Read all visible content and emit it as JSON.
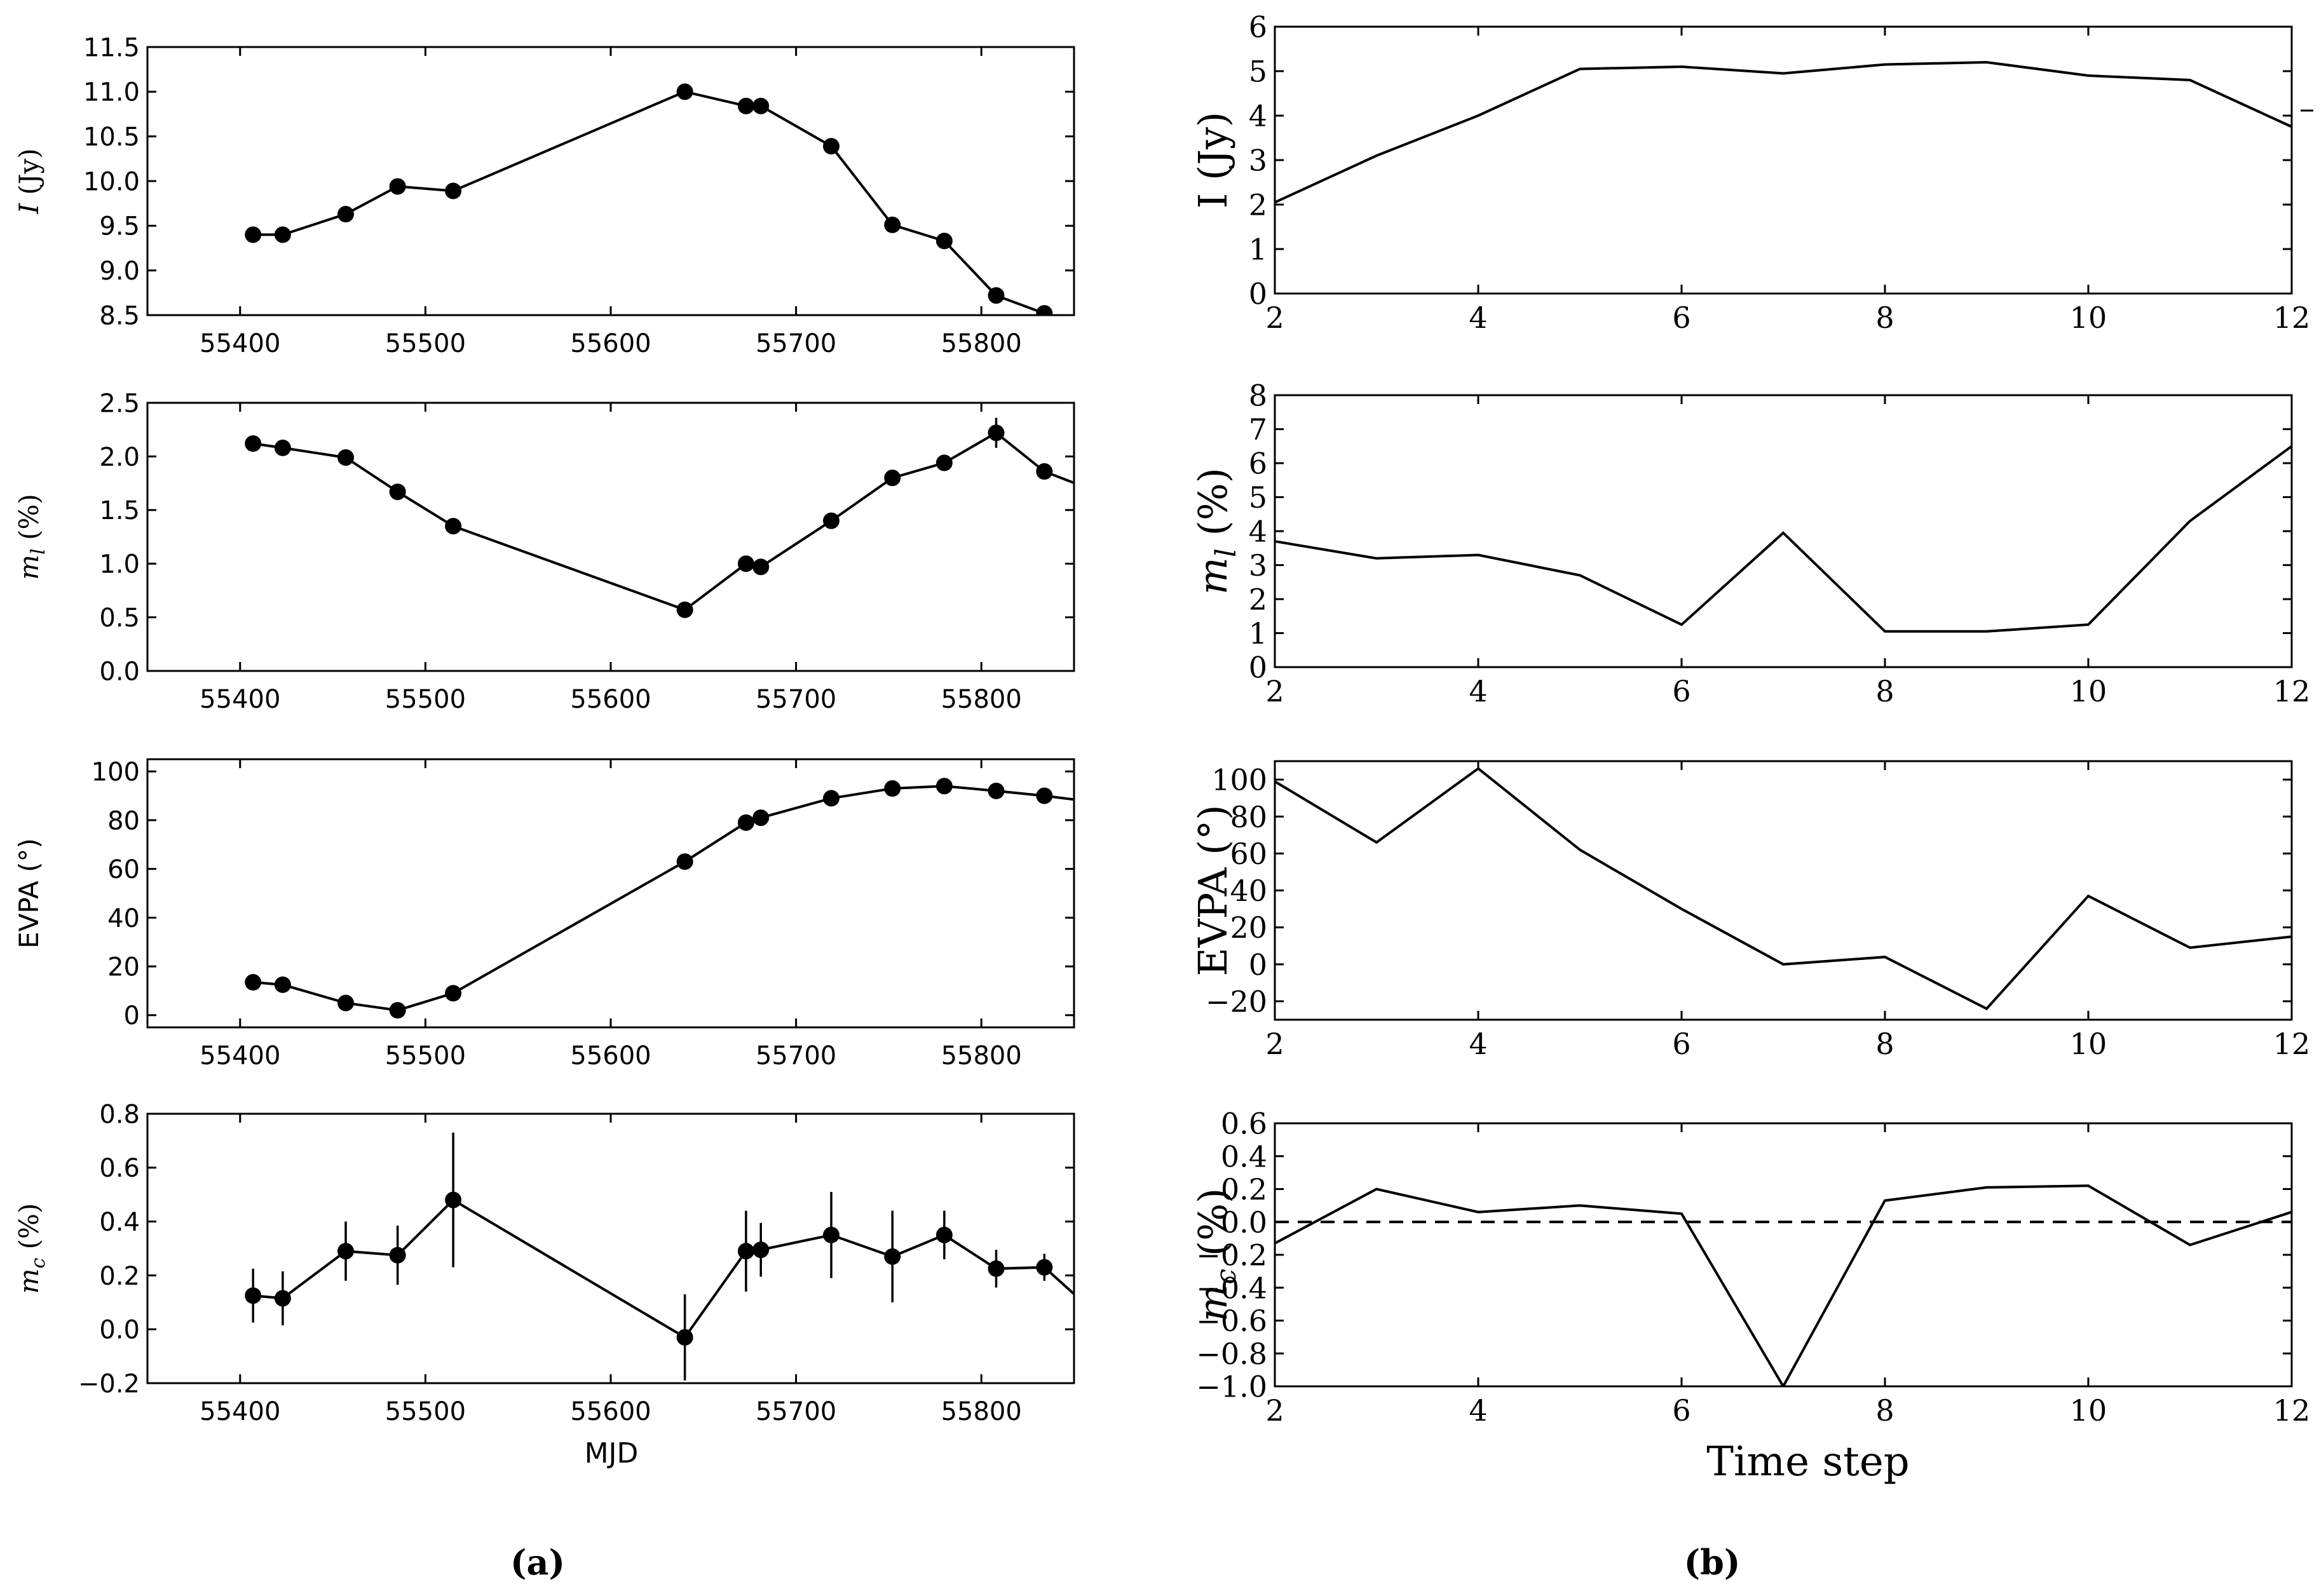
{
  "panels": {
    "a": {
      "caption": "(a)",
      "xlabel": "MJD"
    },
    "b": {
      "caption": "(b)",
      "xlabel": "Time step"
    }
  },
  "chart_data": [
    {
      "id": "a1",
      "panel": "a",
      "type": "line",
      "markers": true,
      "ylabel": "I (Jy)",
      "ylabel_style": "italic-I",
      "xlim": [
        55350,
        55850
      ],
      "ylim": [
        8.5,
        11.5
      ],
      "xticks": [
        "55400",
        "55500",
        "55600",
        "55700",
        "55800"
      ],
      "yticks": [
        "8.5",
        "9.0",
        "9.5",
        "10.0",
        "10.5",
        "11.0",
        "11.5"
      ],
      "x": [
        55407,
        55423,
        55457,
        55485,
        55515,
        55640,
        55673,
        55681,
        55719,
        55752,
        55780,
        55808,
        55834
      ],
      "y": [
        9.4,
        9.4,
        9.63,
        9.94,
        9.89,
        11.0,
        10.84,
        10.84,
        10.39,
        9.51,
        9.33,
        8.72,
        8.52
      ],
      "yerr": null
    },
    {
      "id": "a2",
      "panel": "a",
      "type": "line",
      "markers": true,
      "ylabel": "m_l (%)",
      "ylabel_style": "math",
      "xlim": [
        55350,
        55850
      ],
      "ylim": [
        0.0,
        2.5
      ],
      "xticks": [
        "55400",
        "55500",
        "55600",
        "55700",
        "55800"
      ],
      "yticks": [
        "0.0",
        "0.5",
        "1.0",
        "1.5",
        "2.0",
        "2.5"
      ],
      "x": [
        55407,
        55423,
        55457,
        55485,
        55515,
        55640,
        55673,
        55681,
        55719,
        55752,
        55780,
        55808,
        55834,
        55855
      ],
      "y": [
        2.12,
        2.08,
        1.99,
        1.67,
        1.35,
        0.57,
        1.0,
        0.97,
        1.4,
        1.8,
        1.94,
        2.22,
        1.86,
        1.72
      ],
      "yerr": [
        0.03,
        0.03,
        0.03,
        0.03,
        0.03,
        0.03,
        0.03,
        0.03,
        0.03,
        0.03,
        0.03,
        0.14,
        0.03,
        0.03
      ]
    },
    {
      "id": "a3",
      "panel": "a",
      "type": "line",
      "markers": true,
      "ylabel": "EVPA (°)",
      "ylabel_style": "sans",
      "xlim": [
        55350,
        55850
      ],
      "ylim": [
        -5,
        105
      ],
      "xticks": [
        "55400",
        "55500",
        "55600",
        "55700",
        "55800"
      ],
      "yticks": [
        "0",
        "20",
        "40",
        "60",
        "80",
        "100"
      ],
      "x": [
        55407,
        55423,
        55457,
        55485,
        55515,
        55640,
        55673,
        55681,
        55719,
        55752,
        55780,
        55808,
        55834,
        55855
      ],
      "y": [
        13.5,
        12.5,
        5,
        2,
        9,
        63,
        79,
        81,
        89,
        93,
        94,
        92,
        90,
        88
      ],
      "yerr": null
    },
    {
      "id": "a4",
      "panel": "a",
      "type": "line",
      "markers": true,
      "ylabel": "m_c (%)",
      "ylabel_style": "math",
      "xlim": [
        55350,
        55850
      ],
      "ylim": [
        -0.2,
        0.8
      ],
      "xticks": [
        "55400",
        "55500",
        "55600",
        "55700",
        "55800"
      ],
      "yticks": [
        "−0.2",
        "0.0",
        "0.2",
        "0.4",
        "0.6",
        "0.8"
      ],
      "x": [
        55407,
        55423,
        55457,
        55485,
        55515,
        55640,
        55673,
        55681,
        55719,
        55752,
        55780,
        55808,
        55834,
        55855
      ],
      "y": [
        0.125,
        0.115,
        0.29,
        0.275,
        0.48,
        -0.03,
        0.29,
        0.295,
        0.35,
        0.27,
        0.35,
        0.225,
        0.23,
        0.1
      ],
      "yerr": [
        0.1,
        0.1,
        0.11,
        0.11,
        0.25,
        0.16,
        0.15,
        0.1,
        0.16,
        0.17,
        0.09,
        0.07,
        0.05,
        0.05
      ]
    },
    {
      "id": "b1",
      "panel": "b",
      "type": "line",
      "markers": false,
      "ylabel": "I (Jy)",
      "ylabel_style": "serif",
      "xlim": [
        2,
        12
      ],
      "ylim": [
        0,
        6
      ],
      "xticks": [
        "2",
        "4",
        "6",
        "8",
        "10",
        "12"
      ],
      "yticks": [
        "0",
        "1",
        "2",
        "3",
        "4",
        "5",
        "6"
      ],
      "x": [
        2,
        3,
        4,
        5,
        6,
        7,
        8,
        9,
        10,
        11,
        12
      ],
      "y": [
        2.05,
        3.1,
        4.0,
        5.05,
        5.1,
        4.95,
        5.15,
        5.2,
        4.9,
        4.8,
        3.75
      ],
      "hline": null
    },
    {
      "id": "b2",
      "panel": "b",
      "type": "line",
      "markers": false,
      "ylabel": "m_l (%)",
      "ylabel_style": "math-serif",
      "xlim": [
        2,
        12
      ],
      "ylim": [
        0,
        8
      ],
      "xticks": [
        "2",
        "4",
        "6",
        "8",
        "10",
        "12"
      ],
      "yticks": [
        "0",
        "1",
        "2",
        "3",
        "4",
        "5",
        "6",
        "7",
        "8"
      ],
      "x": [
        2,
        3,
        4,
        5,
        6,
        7,
        8,
        9,
        10,
        11,
        12
      ],
      "y": [
        3.7,
        3.2,
        3.3,
        2.7,
        1.25,
        3.95,
        1.05,
        1.05,
        1.25,
        4.3,
        6.5
      ],
      "hline": null
    },
    {
      "id": "b3",
      "panel": "b",
      "type": "line",
      "markers": false,
      "ylabel": "EVPA (°)",
      "ylabel_style": "serif",
      "xlim": [
        2,
        12
      ],
      "ylim": [
        -30,
        110
      ],
      "xticks": [
        "2",
        "4",
        "6",
        "8",
        "10",
        "12"
      ],
      "yticks": [
        "−20",
        "0",
        "20",
        "40",
        "60",
        "80",
        "100"
      ],
      "x": [
        2,
        3,
        4,
        5,
        6,
        7,
        8,
        9,
        10,
        11,
        12
      ],
      "y": [
        99,
        66,
        106,
        62,
        30,
        0,
        4,
        -24,
        37,
        9,
        15
      ],
      "hline": null
    },
    {
      "id": "b4",
      "panel": "b",
      "type": "line",
      "markers": false,
      "ylabel": "m_c (%)",
      "ylabel_style": "math-serif",
      "xlim": [
        2,
        12
      ],
      "ylim": [
        -1.0,
        0.6
      ],
      "xticks": [
        "2",
        "4",
        "6",
        "8",
        "10",
        "12"
      ],
      "yticks": [
        "−1.0",
        "−0.8",
        "−0.6",
        "−0.4",
        "−0.2",
        "0.0",
        "0.2",
        "0.4",
        "0.6"
      ],
      "x": [
        2,
        3,
        4,
        5,
        6,
        7,
        8,
        9,
        10,
        11,
        12
      ],
      "y": [
        -0.13,
        0.2,
        0.06,
        0.1,
        0.05,
        -1.0,
        0.13,
        0.21,
        0.22,
        -0.14,
        0.06
      ],
      "hline": 0.0
    }
  ]
}
